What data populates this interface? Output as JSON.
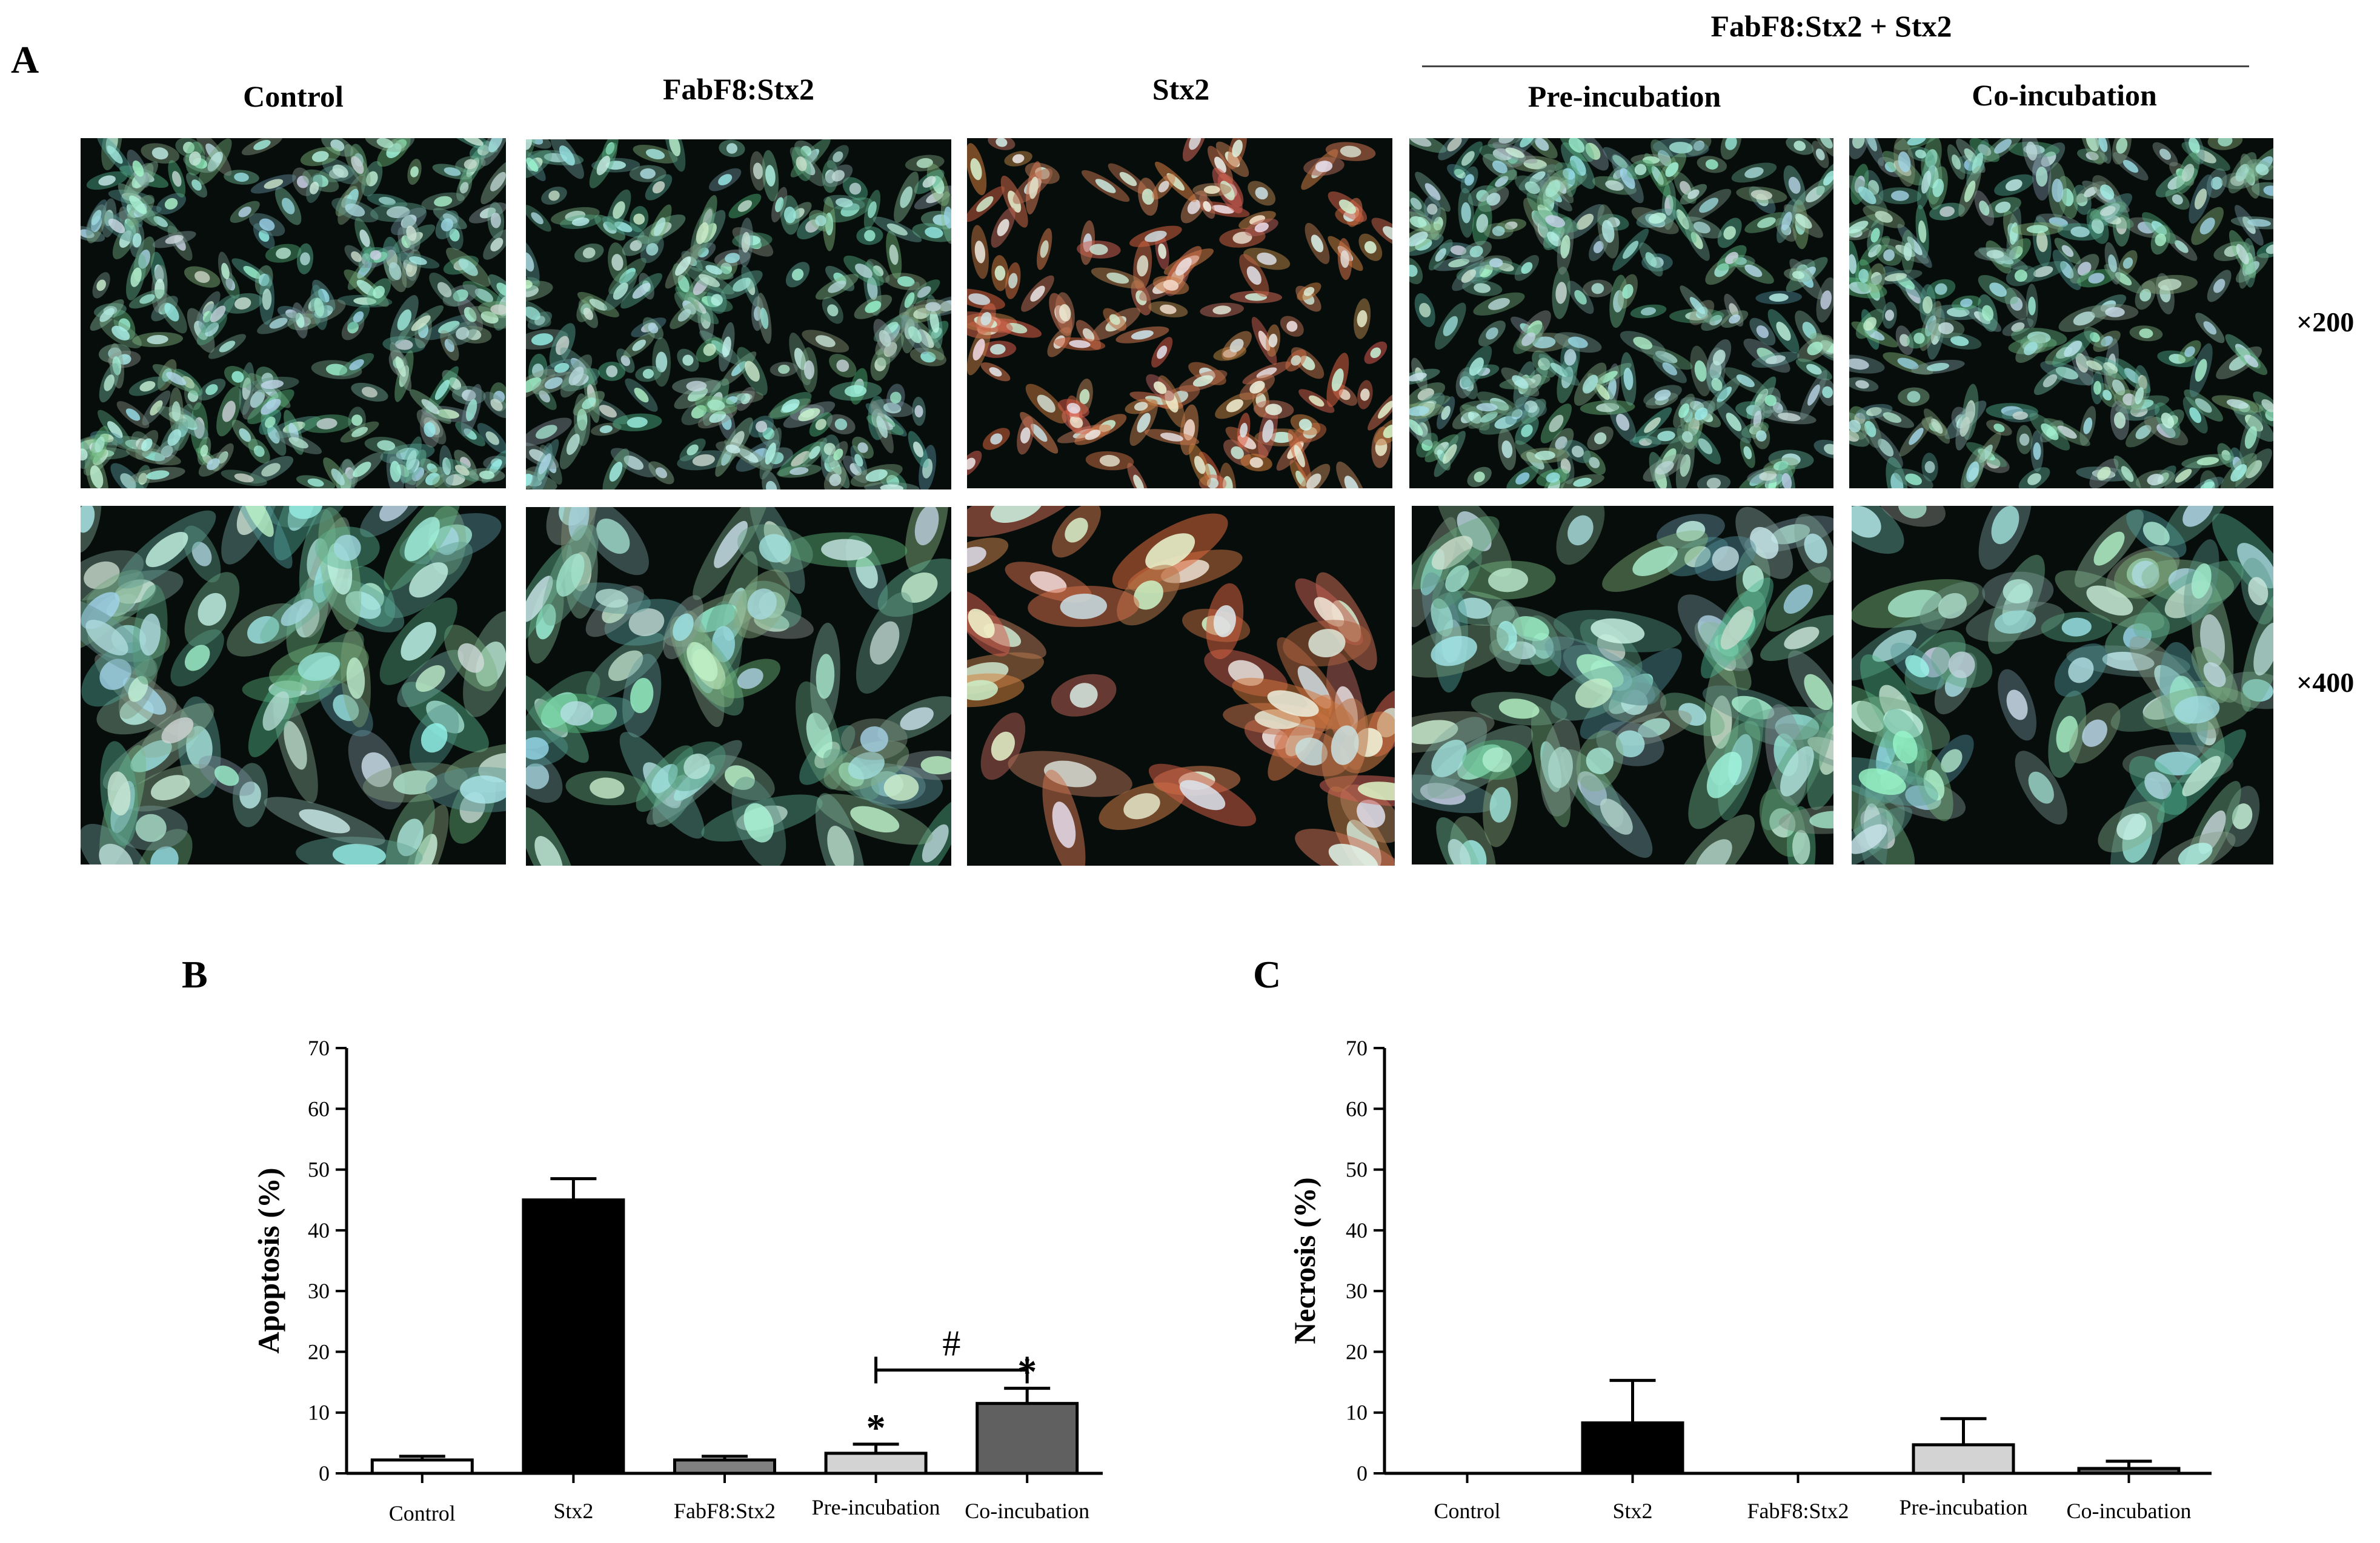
{
  "panel_a": {
    "letter": "A",
    "group_header": "FabF8:Stx2 + Stx2",
    "columns": [
      {
        "id": "control",
        "title": "Control",
        "tint": "#6fbfae",
        "cell_density": 0.95
      },
      {
        "id": "fabf8",
        "title": "FabF8:Stx2",
        "tint": "#6fbfae",
        "cell_density": 0.85
      },
      {
        "id": "stx2",
        "title": "Stx2",
        "tint": "#c98a62",
        "cell_density": 0.55
      },
      {
        "id": "pre",
        "title": "Pre-incubation",
        "tint": "#6fbfae",
        "cell_density": 0.95
      },
      {
        "id": "co",
        "title": "Co-incubation",
        "tint": "#7fbfb0",
        "cell_density": 0.9
      }
    ],
    "magnifications": [
      "×200",
      "×400"
    ]
  },
  "chart_data": [
    {
      "panel": "B",
      "type": "bar",
      "ylabel": "Apoptosis (%)",
      "ylim": [
        0,
        70
      ],
      "yticks": [
        0,
        10,
        20,
        30,
        40,
        50,
        60,
        70
      ],
      "categories": [
        "Control",
        "Stx2",
        "FabF8:Stx2",
        "Pre-incubation",
        "Co-incubation"
      ],
      "values": [
        2.2,
        45,
        2.2,
        3.3,
        11.5
      ],
      "errors": [
        0.6,
        3.5,
        0.6,
        1.5,
        2.5
      ],
      "colors": [
        "#ffffff",
        "#000000",
        "#808080",
        "#d3d3d3",
        "#606060"
      ],
      "annotations": [
        {
          "text": "*",
          "category": "Pre-incubation"
        },
        {
          "text": "*",
          "category": "Co-incubation"
        },
        {
          "text": "#",
          "from": "Pre-incubation",
          "to": "Co-incubation",
          "y": 17
        }
      ]
    },
    {
      "panel": "C",
      "type": "bar",
      "ylabel": "Necrosis (%)",
      "ylim": [
        0,
        70
      ],
      "yticks": [
        0,
        10,
        20,
        30,
        40,
        50,
        60,
        70
      ],
      "categories": [
        "Control",
        "Stx2",
        "FabF8:Stx2",
        "Pre-incubation",
        "Co-incubation"
      ],
      "values": [
        0,
        8.3,
        0,
        4.7,
        0.8
      ],
      "errors": [
        0,
        7,
        0,
        4.3,
        1.2
      ],
      "colors": [
        "#ffffff",
        "#000000",
        "#808080",
        "#d3d3d3",
        "#606060"
      ],
      "annotations": []
    }
  ]
}
